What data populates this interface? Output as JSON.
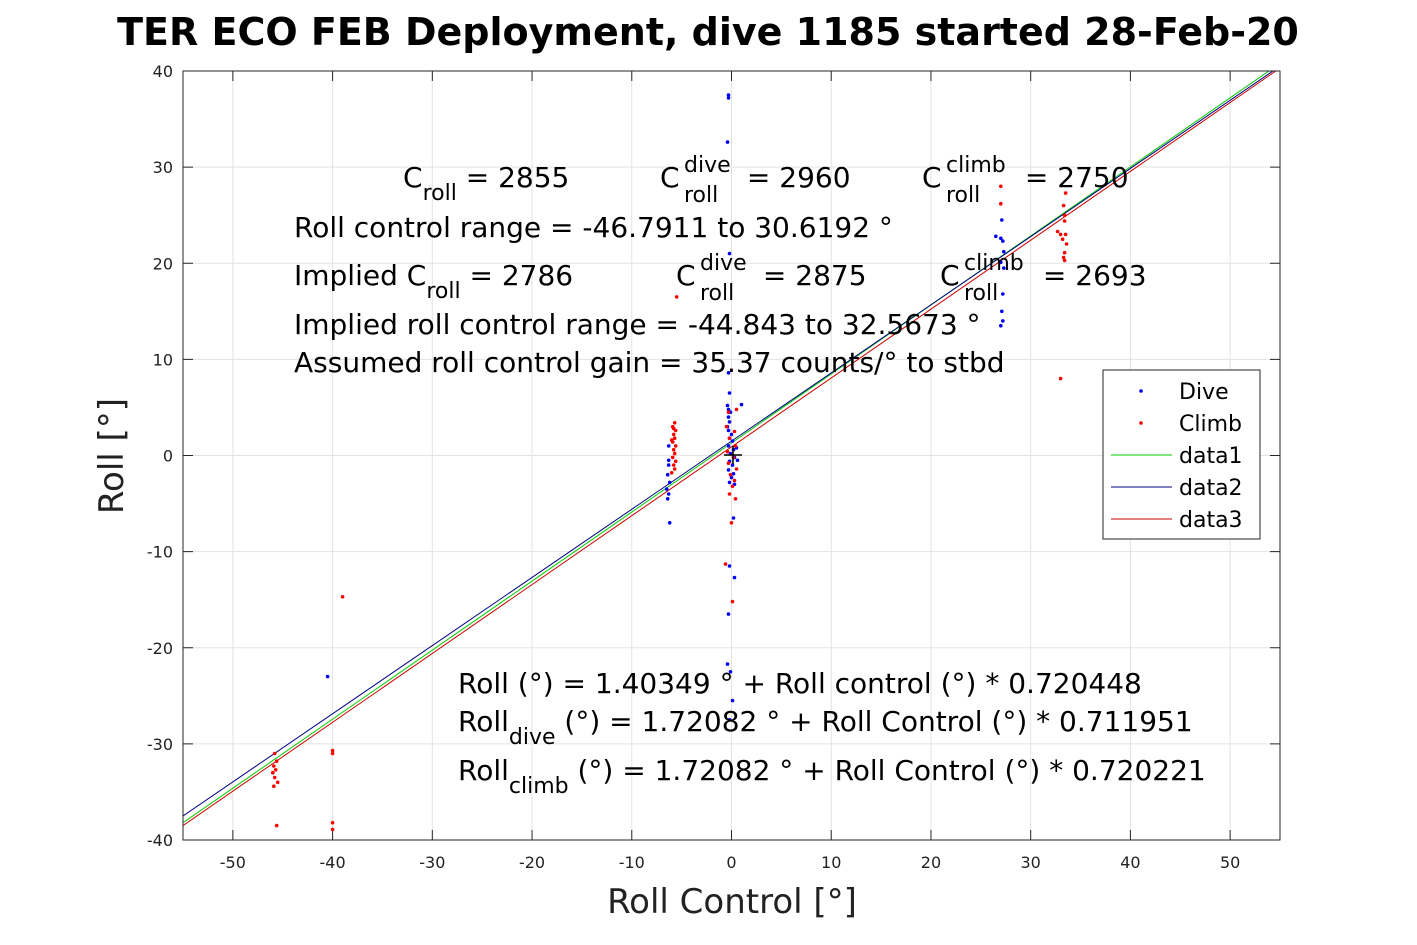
{
  "figure": {
    "title": "TER ECO FEB Deployment, dive 1185 started 28-Feb-20"
  },
  "annotations": {
    "croll": {
      "base": "C",
      "sub": "roll",
      "value": " = 2855"
    },
    "croll_dive": {
      "base": "C",
      "sup": "dive",
      "sub": "roll",
      "value": " = 2960"
    },
    "croll_climb": {
      "base": "C",
      "sup": "climb",
      "sub": "roll",
      "value": " = 2750"
    },
    "range": "Roll control range = -46.7911 to 30.6192 °",
    "implied_croll": {
      "base": "Implied C",
      "sub": "roll",
      "value": " = 2786"
    },
    "implied_croll_dive": {
      "base": "C",
      "sup": "dive",
      "sub": "roll",
      "value": " = 2875"
    },
    "implied_croll_climb": {
      "base": "C",
      "sup": "climb",
      "sub": "roll",
      "value": " = 2693"
    },
    "implied_range": "Implied roll control range = -44.843 to 32.5673 °",
    "gain": "Assumed roll control gain = 35.37 counts/° to stbd",
    "fit_all": "Roll (°) = 1.40349 ° + Roll control (°) * 0.720448",
    "fit_dive": {
      "base": "Roll",
      "sub": "dive",
      "value": " (°) = 1.72082 ° + Roll Control (°) * 0.711951"
    },
    "fit_climb": {
      "base": "Roll",
      "sub": "climb",
      "value": " (°) = 1.72082 ° + Roll Control (°) * 0.720221"
    }
  },
  "chart_data": {
    "type": "scatter",
    "xlabel": "Roll Control [°]",
    "ylabel": "Roll [°]",
    "xlim": [
      -55,
      55
    ],
    "ylim": [
      -40,
      40
    ],
    "xticks": [
      -50,
      -40,
      -30,
      -20,
      -10,
      0,
      10,
      20,
      30,
      40,
      50
    ],
    "yticks": [
      -40,
      -30,
      -20,
      -10,
      0,
      10,
      20,
      30,
      40
    ],
    "grid": true,
    "legend_position": "right",
    "colors": {
      "dive": "#0000ff",
      "climb": "#ff0000",
      "data1": "#00cc00",
      "data2": "#000080",
      "data3": "#cc0000"
    },
    "series": [
      {
        "name": "Dive",
        "kind": "points",
        "color": "#0000ff",
        "points": [
          [
            -0.3,
            37.5
          ],
          [
            -0.3,
            37.2
          ],
          [
            -0.4,
            32.6
          ],
          [
            -0.2,
            21.0
          ],
          [
            26.5,
            22.8
          ],
          [
            27.0,
            22.6
          ],
          [
            27.2,
            22.3
          ],
          [
            27.1,
            24.5
          ],
          [
            27.3,
            21.2
          ],
          [
            27.0,
            20.1
          ],
          [
            27.3,
            19.5
          ],
          [
            27.2,
            16.8
          ],
          [
            27.1,
            15.0
          ],
          [
            27.2,
            14.0
          ],
          [
            27.0,
            13.5
          ],
          [
            -6.3,
            -1.0
          ],
          [
            -6.4,
            -2.0
          ],
          [
            -6.2,
            -2.8
          ],
          [
            -6.5,
            -3.5
          ],
          [
            -6.3,
            -4.0
          ],
          [
            -6.4,
            -4.5
          ],
          [
            -6.2,
            -7.0
          ],
          [
            -6.3,
            1.0
          ],
          [
            -6.3,
            -0.5
          ],
          [
            -0.3,
            8.6
          ],
          [
            -0.2,
            6.5
          ],
          [
            -0.4,
            5.2
          ],
          [
            -0.3,
            4.8
          ],
          [
            -0.1,
            4.5
          ],
          [
            -0.3,
            4.0
          ],
          [
            -0.2,
            3.5
          ],
          [
            -0.4,
            3.0
          ],
          [
            -0.3,
            2.6
          ],
          [
            0.0,
            2.2
          ],
          [
            -0.2,
            1.8
          ],
          [
            0.1,
            1.5
          ],
          [
            -0.3,
            1.0
          ],
          [
            0.2,
            0.6
          ],
          [
            -0.1,
            0.2
          ],
          [
            0.3,
            -0.2
          ],
          [
            -0.2,
            -0.6
          ],
          [
            0.1,
            -1.0
          ],
          [
            -0.3,
            -1.5
          ],
          [
            0.2,
            -1.9
          ],
          [
            0.0,
            -2.3
          ],
          [
            -0.2,
            -2.8
          ],
          [
            0.3,
            -3.0
          ],
          [
            1.0,
            5.3
          ],
          [
            0.6,
            -0.5
          ],
          [
            0.5,
            0.8
          ],
          [
            0.2,
            -6.5
          ],
          [
            -0.2,
            -11.5
          ],
          [
            0.3,
            -12.7
          ],
          [
            -0.3,
            -16.5
          ],
          [
            -0.4,
            -21.7
          ],
          [
            -0.1,
            -22.5
          ],
          [
            0.1,
            -25.5
          ],
          [
            -0.2,
            -27.5
          ],
          [
            -40.5,
            -23.0
          ]
        ]
      },
      {
        "name": "Climb",
        "kind": "points",
        "color": "#ff0000",
        "points": [
          [
            27.0,
            28.0
          ],
          [
            27.0,
            26.2
          ],
          [
            33.5,
            27.3
          ],
          [
            33.3,
            26.0
          ],
          [
            33.4,
            25.0
          ],
          [
            33.4,
            24.4
          ],
          [
            33.5,
            23.0
          ],
          [
            33.2,
            22.5
          ],
          [
            33.6,
            22.0
          ],
          [
            33.4,
            21.1
          ],
          [
            33.3,
            20.6
          ],
          [
            33.4,
            20.3
          ],
          [
            32.7,
            23.3
          ],
          [
            33.0,
            23.0
          ],
          [
            33.0,
            8.0
          ],
          [
            -5.5,
            16.5
          ],
          [
            -5.7,
            3.4
          ],
          [
            -5.9,
            3.0
          ],
          [
            -5.6,
            2.6
          ],
          [
            -5.8,
            2.2
          ],
          [
            -5.7,
            1.8
          ],
          [
            -5.9,
            1.4
          ],
          [
            -5.6,
            1.0
          ],
          [
            -5.8,
            0.6
          ],
          [
            -5.7,
            0.2
          ],
          [
            -5.9,
            -0.2
          ],
          [
            -5.6,
            -0.6
          ],
          [
            -5.8,
            -1.0
          ],
          [
            -5.7,
            -1.4
          ],
          [
            -6.0,
            -1.8
          ],
          [
            -5.8,
            2.8
          ],
          [
            -6.0,
            1.6
          ],
          [
            -0.5,
            3.0
          ],
          [
            0.3,
            2.5
          ],
          [
            -0.2,
            1.8
          ],
          [
            0.4,
            1.0
          ],
          [
            -0.4,
            0.4
          ],
          [
            0.2,
            -0.2
          ],
          [
            -0.3,
            -0.8
          ],
          [
            0.5,
            -1.4
          ],
          [
            -0.1,
            -2.0
          ],
          [
            0.3,
            -2.6
          ],
          [
            0.1,
            -3.2
          ],
          [
            -0.2,
            -4.0
          ],
          [
            0.4,
            -4.5
          ],
          [
            0.0,
            -7.0
          ],
          [
            0.5,
            4.8
          ],
          [
            -0.3,
            4.5
          ],
          [
            -0.6,
            -11.3
          ],
          [
            0.1,
            -15.2
          ],
          [
            -45.8,
            -31.0
          ],
          [
            -45.6,
            -31.8
          ],
          [
            -45.9,
            -32.3
          ],
          [
            -45.7,
            -32.7
          ],
          [
            -45.8,
            -33.5
          ],
          [
            -45.5,
            -34.0
          ],
          [
            -45.9,
            -34.4
          ],
          [
            -45.6,
            -38.5
          ],
          [
            -46.0,
            -33.0
          ],
          [
            -40.0,
            -30.7
          ],
          [
            -40.0,
            -31.0
          ],
          [
            -40.0,
            -38.2
          ],
          [
            -40.0,
            -38.9
          ],
          [
            -39.0,
            -14.7
          ]
        ]
      },
      {
        "name": "data1",
        "kind": "line",
        "color": "#00cc00",
        "x": [
          -55,
          55
        ],
        "y": [
          -38.2,
          40.8
        ]
      },
      {
        "name": "data2",
        "kind": "line",
        "color": "#000080",
        "x": [
          -55,
          55
        ],
        "y": [
          -37.5,
          40.5
        ]
      },
      {
        "name": "data3",
        "kind": "line",
        "color": "#cc0000",
        "x": [
          -55,
          55
        ],
        "y": [
          -38.5,
          40.3
        ]
      }
    ]
  }
}
